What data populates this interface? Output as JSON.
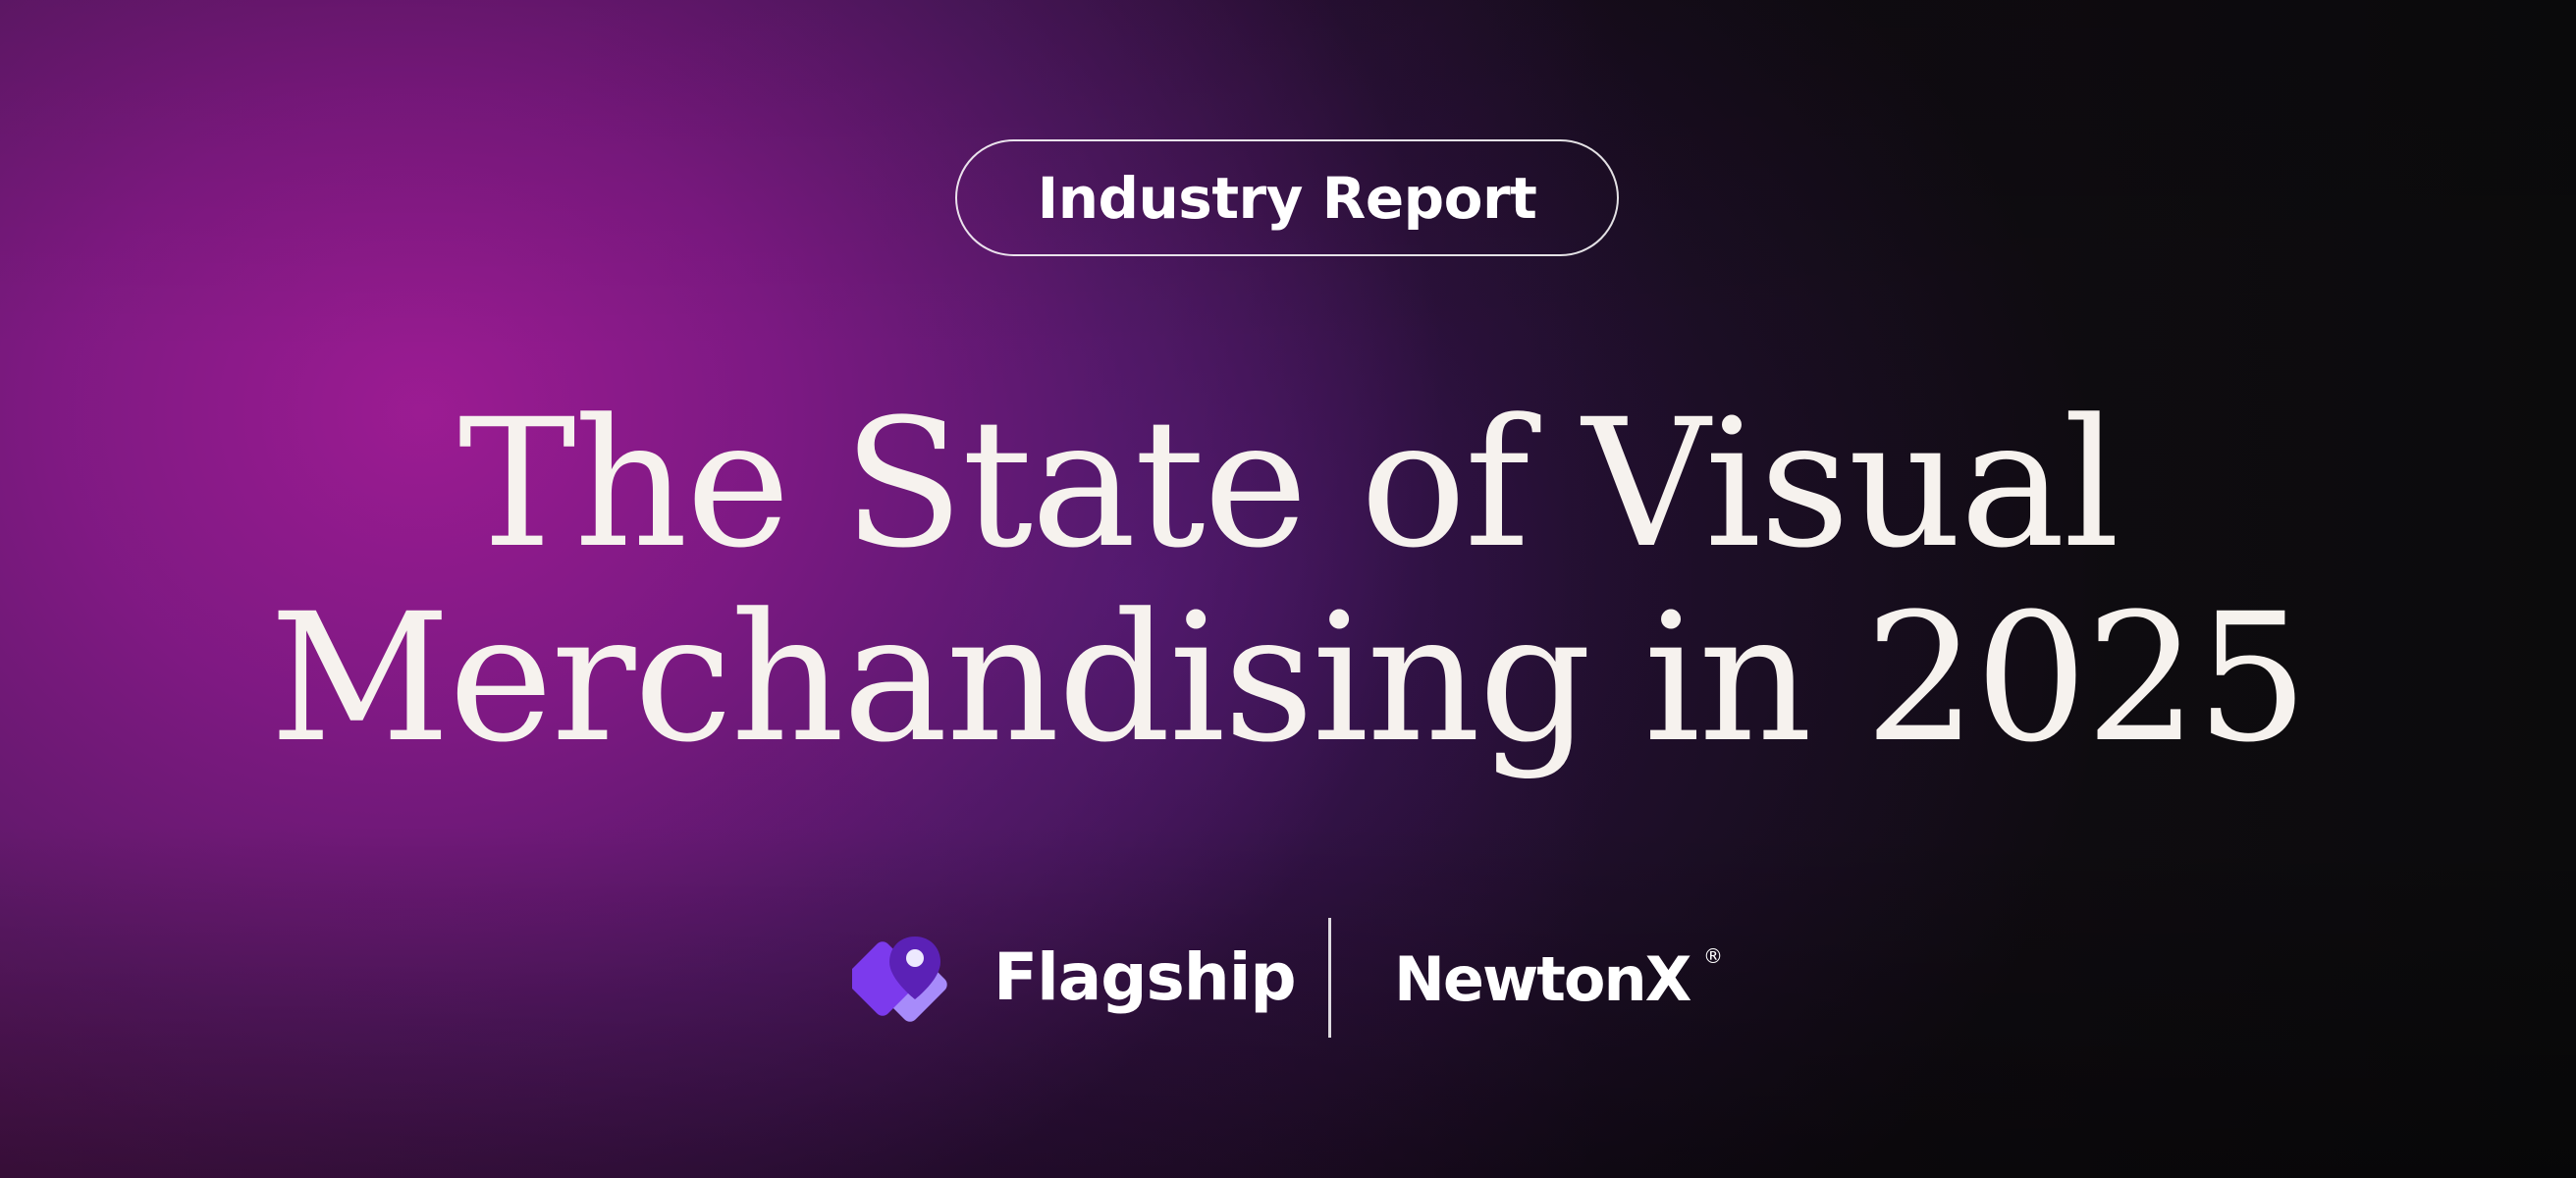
{
  "badge": {
    "label": "Industry Report"
  },
  "headline": {
    "line1": "The State of Visual",
    "line2": "Merchandising in 2025"
  },
  "logos": {
    "flagship": {
      "name": "Flagship",
      "icon": "flagship-logo-icon"
    },
    "newtonx": {
      "name": "NewtonX",
      "trademark": "®"
    }
  },
  "colors": {
    "background": "#0b0b0c",
    "gradient_magenta": "#a01c96",
    "gradient_purple": "#5c1c96",
    "text": "#f6f2ee",
    "flagship_purple_light": "#a78bfa",
    "flagship_purple_dark": "#6d28d9"
  }
}
